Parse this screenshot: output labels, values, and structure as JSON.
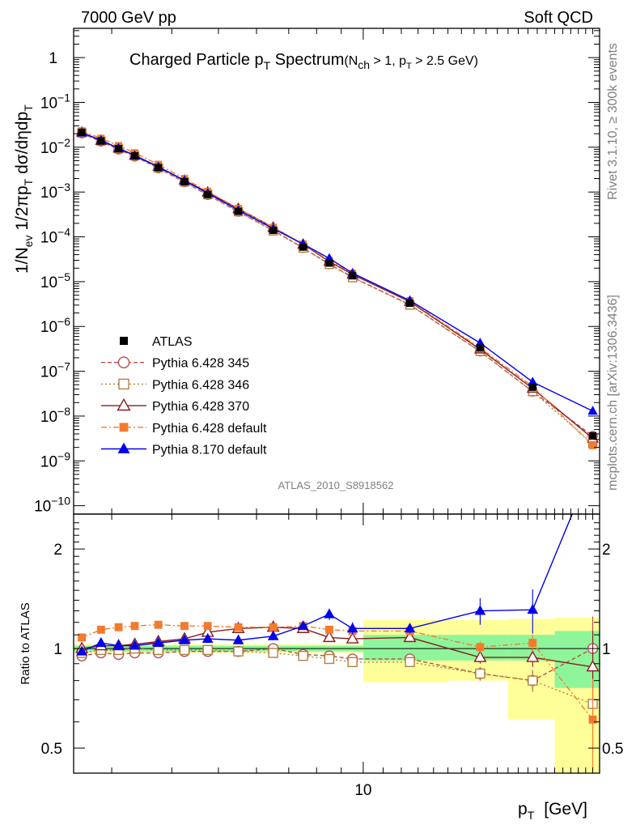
{
  "header": {
    "left": "7000 GeV pp",
    "right": "Soft QCD"
  },
  "side_labels": {
    "rivet": "Rivet 3.1.10, ≥ 300k events",
    "mcplots": "mcplots.cern.ch [arXiv:1306.3436]"
  },
  "plot_title": {
    "main": "Charged Particle p",
    "main_sub": "T",
    "main_suffix": " Spectrum",
    "cond_open": "(N",
    "cond_sub1": "ch",
    "cond_mid": " > 1, p",
    "cond_sub2": "T",
    "cond_end": " > 2.5 GeV)"
  },
  "watermark": "ATLAS_2010_S8918562",
  "axes": {
    "xlabel": "p",
    "xlabel_sub": "T",
    "xlabel_unit": "[GeV]",
    "ylabel_main": "1/N",
    "ylabel_sub1": "ev",
    "ylabel_mid": " 1/2πp",
    "ylabel_sub2": "T",
    "ylabel_end": " dσ/dηdp",
    "ylabel_sub3": "T",
    "ratio_ylabel": "Ratio to ATLAS",
    "x_tick_label": "10",
    "main_yticks": [
      {
        "base": "1",
        "exp": ""
      },
      {
        "base": "10",
        "exp": "−1"
      },
      {
        "base": "10",
        "exp": "−2"
      },
      {
        "base": "10",
        "exp": "−3"
      },
      {
        "base": "10",
        "exp": "−4"
      },
      {
        "base": "10",
        "exp": "−5"
      },
      {
        "base": "10",
        "exp": "−6"
      },
      {
        "base": "10",
        "exp": "−7"
      },
      {
        "base": "10",
        "exp": "−8"
      },
      {
        "base": "10",
        "exp": "−9"
      },
      {
        "base": "10",
        "exp": "−10"
      }
    ],
    "ratio_yticks": [
      "2",
      "1",
      "0.5"
    ]
  },
  "chart_data": {
    "type": "line",
    "x_scale": "log",
    "y_scale": "log",
    "xlim": [
      2.5,
      31
    ],
    "main_ylim": [
      6.5e-11,
      4.5
    ],
    "ratio_ylim": [
      0.42,
      2.55
    ],
    "x": [
      2.6,
      2.85,
      3.1,
      3.35,
      3.75,
      4.25,
      4.75,
      5.5,
      6.5,
      7.5,
      8.5,
      9.5,
      12.5,
      17.5,
      22.5,
      30
    ],
    "ref_band_inner": [
      {
        "x0": 2.5,
        "x1": 10,
        "lo": 0.98,
        "hi": 1.02
      },
      {
        "x0": 10,
        "x1": 20,
        "lo": 0.92,
        "hi": 1.1
      },
      {
        "x0": 20,
        "x1": 25,
        "lo": 0.92,
        "hi": 1.1
      },
      {
        "x0": 25,
        "x1": 31,
        "lo": 0.76,
        "hi": 1.13
      }
    ],
    "ref_band_outer": [
      {
        "x0": 2.5,
        "x1": 10,
        "lo": 0.97,
        "hi": 1.03
      },
      {
        "x0": 10,
        "x1": 15,
        "lo": 0.79,
        "hi": 1.22
      },
      {
        "x0": 15,
        "x1": 20,
        "lo": 0.8,
        "hi": 1.22
      },
      {
        "x0": 20,
        "x1": 25,
        "lo": 0.61,
        "hi": 1.23
      },
      {
        "x0": 25,
        "x1": 31,
        "lo": 0.39,
        "hi": 1.24
      }
    ],
    "atlas_y": [
      0.0215,
      0.0138,
      0.0093,
      0.0064,
      0.0035,
      0.0017,
      0.00088,
      0.00037,
      0.00014,
      5.9e-05,
      2.6e-05,
      1.35e-05,
      3.3e-06,
      3.3e-07,
      4.4e-08,
      3.6e-09
    ],
    "series": [
      {
        "name": "Pythia 6.428 345",
        "color": "#b2504f",
        "marker": "circle-open",
        "dash": "5,3",
        "ratio": [
          0.95,
          0.97,
          0.96,
          0.97,
          0.97,
          0.98,
          0.98,
          0.98,
          1.0,
          0.96,
          0.95,
          0.93,
          0.93,
          0.84,
          0.8,
          1.0
        ],
        "ratio_err": [
          0.01,
          0.01,
          0.01,
          0.01,
          0.01,
          0.01,
          0.01,
          0.01,
          0.01,
          0.01,
          0.01,
          0.01,
          0.02,
          0.04,
          0.06,
          0.25
        ]
      },
      {
        "name": "Pythia 6.428 346",
        "color": "#b28040",
        "marker": "square-open",
        "dash": "2,3",
        "ratio": [
          0.97,
          0.99,
          0.99,
          1.0,
          0.99,
          0.99,
          0.99,
          0.98,
          0.97,
          0.95,
          0.93,
          0.91,
          0.91,
          0.84,
          0.8,
          0.68
        ],
        "ratio_err": [
          0.01,
          0.01,
          0.01,
          0.01,
          0.01,
          0.01,
          0.01,
          0.01,
          0.01,
          0.01,
          0.01,
          0.01,
          0.02,
          0.04,
          0.06,
          0.2
        ]
      },
      {
        "name": "Pythia 6.428 370",
        "color": "#8b1a1a",
        "marker": "triangle-open",
        "dash": "",
        "ratio": [
          1.0,
          1.02,
          1.02,
          1.03,
          1.05,
          1.07,
          1.12,
          1.15,
          1.16,
          1.15,
          1.08,
          1.07,
          1.08,
          0.94,
          0.94,
          0.88
        ],
        "ratio_err": [
          0.01,
          0.01,
          0.01,
          0.01,
          0.01,
          0.01,
          0.01,
          0.01,
          0.01,
          0.01,
          0.01,
          0.01,
          0.02,
          0.04,
          0.06,
          0.25
        ]
      },
      {
        "name": "Pythia 6.428 default",
        "color": "#f47a2e",
        "marker": "square-filled",
        "dash": "7,3,2,3",
        "ratio": [
          1.08,
          1.14,
          1.16,
          1.17,
          1.18,
          1.17,
          1.17,
          1.16,
          1.16,
          1.17,
          1.14,
          1.13,
          1.13,
          1.01,
          1.04,
          0.61
        ],
        "ratio_err": [
          0.01,
          0.01,
          0.01,
          0.01,
          0.01,
          0.01,
          0.01,
          0.01,
          0.01,
          0.01,
          0.01,
          0.01,
          0.02,
          0.04,
          0.06,
          0.2
        ]
      },
      {
        "name": "Pythia 8.170 default",
        "color": "#0000ee",
        "marker": "triangle-filled",
        "dash": "",
        "ratio": [
          0.98,
          1.04,
          1.02,
          1.02,
          1.04,
          1.06,
          1.07,
          1.06,
          1.09,
          1.17,
          1.27,
          1.15,
          1.15,
          1.3,
          1.31,
          3.6
        ],
        "ratio_err": [
          0.01,
          0.01,
          0.01,
          0.01,
          0.01,
          0.01,
          0.01,
          0.01,
          0.02,
          0.03,
          0.05,
          0.05,
          0.04,
          0.12,
          0.2,
          0.3
        ]
      }
    ],
    "legend": {
      "placement": "lower-left",
      "entries": [
        "ATLAS",
        "Pythia 6.428 345",
        "Pythia 6.428 346",
        "Pythia 6.428 370",
        "Pythia 6.428 default",
        "Pythia 8.170 default"
      ]
    }
  }
}
